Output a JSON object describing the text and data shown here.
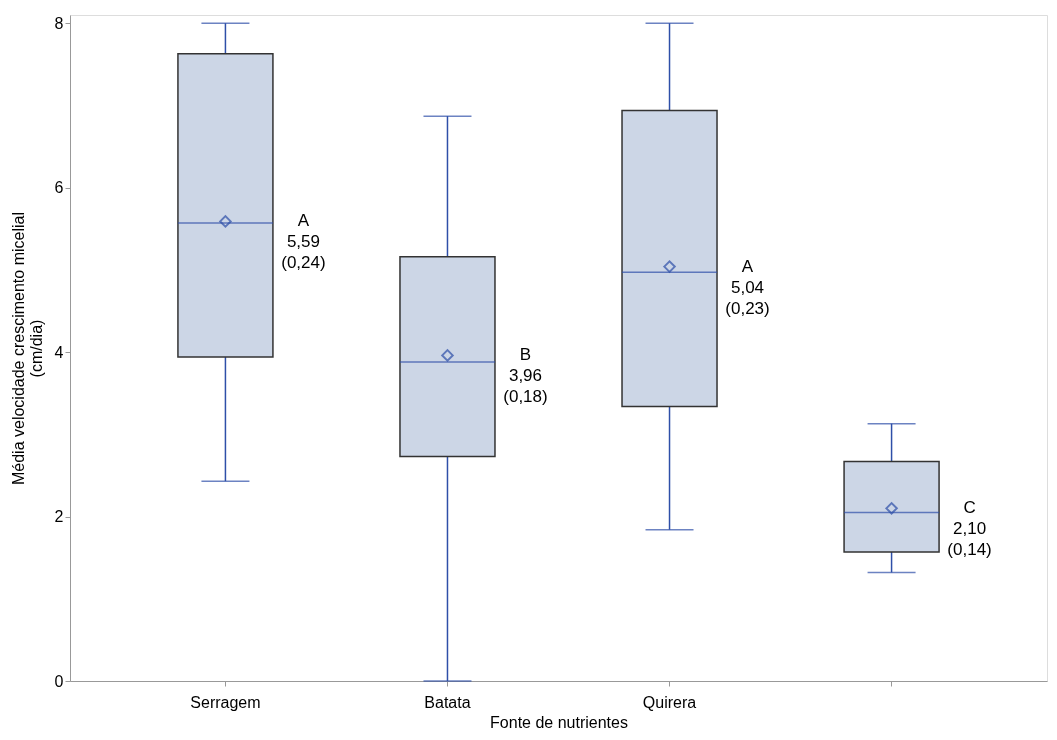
{
  "chart_data": {
    "type": "box",
    "xlabel": "Fonte de nutrientes",
    "ylabel": "Média velocidade crescimento micelial\n(cm/dia)",
    "categories": [
      "Serragem",
      "Batata",
      "Quirera",
      null
    ],
    "boxes": [
      {
        "low": 2.43,
        "q1": 3.94,
        "median": 5.57,
        "q3": 7.63,
        "high": 8.0,
        "mean": 5.59
      },
      {
        "low": 0.0,
        "q1": 2.73,
        "median": 3.88,
        "q3": 5.16,
        "high": 6.87,
        "mean": 3.96
      },
      {
        "low": 1.84,
        "q1": 3.34,
        "median": 4.97,
        "q3": 6.94,
        "high": 8.0,
        "mean": 5.04
      },
      {
        "low": 1.32,
        "q1": 1.57,
        "median": 2.05,
        "q3": 2.67,
        "high": 3.13,
        "mean": 2.1
      }
    ],
    "color": "#ccd6e6",
    "marker": "diamond",
    "ylim": [
      0,
      8.1
    ],
    "yticks": [
      0,
      2,
      4,
      6,
      8
    ],
    "grid": false,
    "annotations": [
      "A\n5,59\n(0,24)",
      "B\n3,96\n(0,18)",
      "A\n5,04\n(0,23)",
      "C\n2,10\n(0,14)"
    ]
  }
}
